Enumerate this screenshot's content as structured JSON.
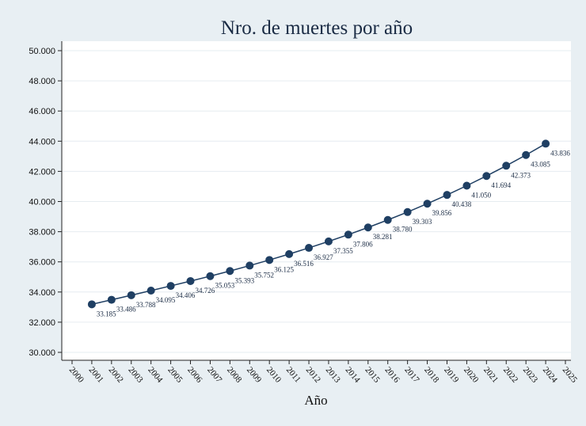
{
  "colors": {
    "background": "#e8eff3",
    "plot_area": "#ffffff",
    "series": "#1f3f63",
    "grid": "#e6ecf0"
  },
  "chart_data": {
    "type": "line",
    "title": "Nro. de muertes por año",
    "xlabel": "Año",
    "ylabel": "",
    "xlim": [
      2000,
      2025
    ],
    "ylim": [
      30000,
      50000
    ],
    "x_ticks": [
      "2000",
      "2001",
      "2002",
      "2003",
      "2004",
      "2005",
      "2006",
      "2007",
      "2008",
      "2009",
      "2010",
      "2011",
      "2012",
      "2013",
      "2014",
      "2015",
      "2016",
      "2017",
      "2018",
      "2019",
      "2020",
      "2021",
      "2022",
      "2023",
      "2024",
      "2025"
    ],
    "y_ticks": [
      {
        "value": 30000,
        "label": "30.000"
      },
      {
        "value": 32000,
        "label": "32.000"
      },
      {
        "value": 34000,
        "label": "34.000"
      },
      {
        "value": 36000,
        "label": "36.000"
      },
      {
        "value": 38000,
        "label": "38.000"
      },
      {
        "value": 40000,
        "label": "40.000"
      },
      {
        "value": 42000,
        "label": "42.000"
      },
      {
        "value": 44000,
        "label": "44.000"
      },
      {
        "value": 46000,
        "label": "46.000"
      },
      {
        "value": 48000,
        "label": "48.000"
      },
      {
        "value": 50000,
        "label": "50.000"
      }
    ],
    "grid": true,
    "markers": "circle",
    "series": [
      {
        "x": [
          2001,
          2002,
          2003,
          2004,
          2005,
          2006,
          2007,
          2008,
          2009,
          2010,
          2011,
          2012,
          2013,
          2014,
          2015,
          2016,
          2017,
          2018,
          2019,
          2020,
          2021,
          2022,
          2023,
          2024
        ],
        "values": [
          33185,
          33486,
          33788,
          34095,
          34406,
          34726,
          35053,
          35393,
          35752,
          36125,
          36516,
          36927,
          37355,
          37806,
          38281,
          38780,
          39303,
          39856,
          40438,
          41050,
          41694,
          42373,
          43085,
          43836
        ],
        "labels": [
          "33.185",
          "33.486",
          "33.788",
          "34.095",
          "34.406",
          "34.726",
          "35.053",
          "35.393",
          "35.752",
          "36.125",
          "36.516",
          "36.927",
          "37.355",
          "37.806",
          "38.281",
          "38.780",
          "39.303",
          "39.856",
          "40.438",
          "41.050",
          "41.694",
          "42.373",
          "43.085",
          "43.836"
        ]
      }
    ]
  }
}
